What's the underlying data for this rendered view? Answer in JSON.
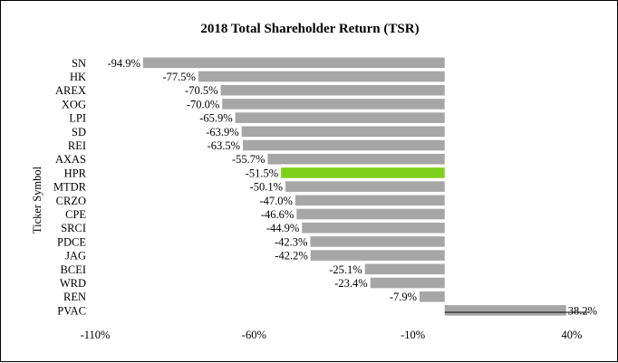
{
  "chart_data": {
    "type": "bar",
    "orientation": "horizontal",
    "title": "2018 Total Shareholder Return (TSR)",
    "xlabel": "",
    "ylabel": "Ticker Symbol",
    "xlim": [
      -110,
      40
    ],
    "xticks": [
      -110,
      -60,
      -10,
      40
    ],
    "xtick_labels": [
      "-110%",
      "-60%",
      "-10%",
      "40%"
    ],
    "categories": [
      "SN",
      "HK",
      "AREX",
      "XOG",
      "LPI",
      "SD",
      "REI",
      "AXAS",
      "HPR",
      "MTDR",
      "CRZO",
      "CPE",
      "SRCI",
      "PDCE",
      "JAG",
      "BCEI",
      "WRD",
      "REN",
      "PVAC"
    ],
    "values": [
      -94.9,
      -77.5,
      -70.5,
      -70.0,
      -65.9,
      -63.9,
      -63.5,
      -55.7,
      -51.5,
      -50.1,
      -47.0,
      -46.6,
      -44.9,
      -42.3,
      -42.2,
      -25.1,
      -23.4,
      -7.9,
      38.2
    ],
    "data_labels": [
      "-94.9%",
      "-77.5%",
      "-70.5%",
      "-70.0%",
      "-65.9%",
      "-63.9%",
      "-63.5%",
      "-55.7%",
      "-51.5%",
      "-50.1%",
      "-47.0%",
      "-46.6%",
      "-44.9%",
      "-42.3%",
      "-42.2%",
      "-25.1%",
      "-23.4%",
      "-7.9%",
      "38.2%"
    ],
    "highlight": "HPR",
    "colors": {
      "default": "#a6a6a6",
      "highlight": "#7fd01a"
    },
    "grid": false,
    "legend": "none"
  }
}
